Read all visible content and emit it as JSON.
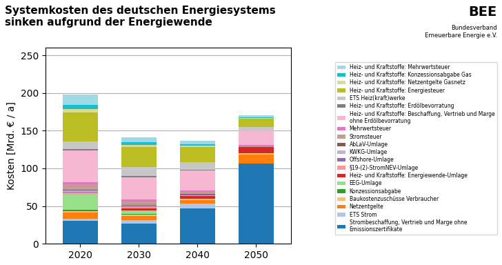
{
  "chart_data": {
    "type": "bar",
    "stacked": true,
    "title": "Systemkosten des deutschen Energiesystems\nsinken aufgrund der Energiewende",
    "annotations": [
      "BEE",
      "Bundesverband\nErneuerbare Energie e.V."
    ],
    "y_label": "Kosten [Mrd. € / a]",
    "categories": [
      "2020",
      "2030",
      "2040",
      "2050"
    ],
    "ylim": [
      0,
      260
    ],
    "yticks": [
      0,
      50,
      100,
      150,
      200,
      250
    ],
    "grid": true,
    "legend": "center right",
    "series": [
      {
        "name": "Strombeschaffung, Vertrieb und Marge ohne\nEmissionszertifikate",
        "values": [
          30,
          27,
          47,
          106
        ]
      },
      {
        "name": "ETS Strom",
        "values": [
          3,
          4,
          6,
          0
        ]
      },
      {
        "name": "Netzentgelte",
        "values": [
          8,
          6,
          5,
          12
        ]
      },
      {
        "name": "Baukostenzuschüsse Verbraucher",
        "values": [
          2,
          1.5,
          1.5,
          2
        ]
      },
      {
        "name": "Konzessionsabgabe",
        "values": [
          2,
          1,
          0.5,
          0.5
        ]
      },
      {
        "name": "EEG-Umlage",
        "values": [
          20,
          5,
          0,
          0
        ]
      },
      {
        "name": "Heiz- und Kraftstoffe: Energiewende-Umlage",
        "values": [
          0,
          2,
          3,
          8
        ]
      },
      {
        "name": "§19-(2)-StromNEV-Umlage",
        "values": [
          3,
          2,
          1,
          0
        ]
      },
      {
        "name": "Offshore-Umlage",
        "values": [
          1,
          1,
          1,
          0
        ]
      },
      {
        "name": "KWKG-Umlage",
        "values": [
          2,
          1,
          0.5,
          0
        ]
      },
      {
        "name": "AbLaV-Umlage",
        "values": [
          1,
          1,
          0.5,
          0
        ]
      },
      {
        "name": "Stromsteuer",
        "values": [
          7,
          5,
          3,
          1
        ]
      },
      {
        "name": "Mehrwertsteuer",
        "values": [
          3,
          2,
          2,
          2
        ]
      },
      {
        "name": "Heiz- und Kraftstoffe: Beschaffung, Vertrieb und Marge\nohne Erdölbevorratung",
        "values": [
          42,
          30,
          26,
          18
        ]
      },
      {
        "name": "Heiz- und Kraftstoffe: Erdölbevorratung",
        "values": [
          2,
          1,
          1,
          0
        ]
      },
      {
        "name": "ETS Heiz(kraft)werke",
        "values": [
          10,
          12,
          10,
          5
        ]
      },
      {
        "name": "Heiz- und Kraftstoffe: Energiesteuer",
        "values": [
          38,
          27,
          20,
          11
        ]
      },
      {
        "name": "Heiz- und Kraftstoffe: Netzentgelte Gasnetz",
        "values": [
          5,
          3,
          2,
          1
        ]
      },
      {
        "name": "Heiz- und Kraftstoffe: Konzessionsabgabe Gas",
        "values": [
          5,
          3,
          2,
          1
        ]
      },
      {
        "name": "Heiz- und Kraftstoffe: Mehrwertsteuer",
        "values": [
          14,
          7,
          5,
          3
        ]
      }
    ]
  }
}
